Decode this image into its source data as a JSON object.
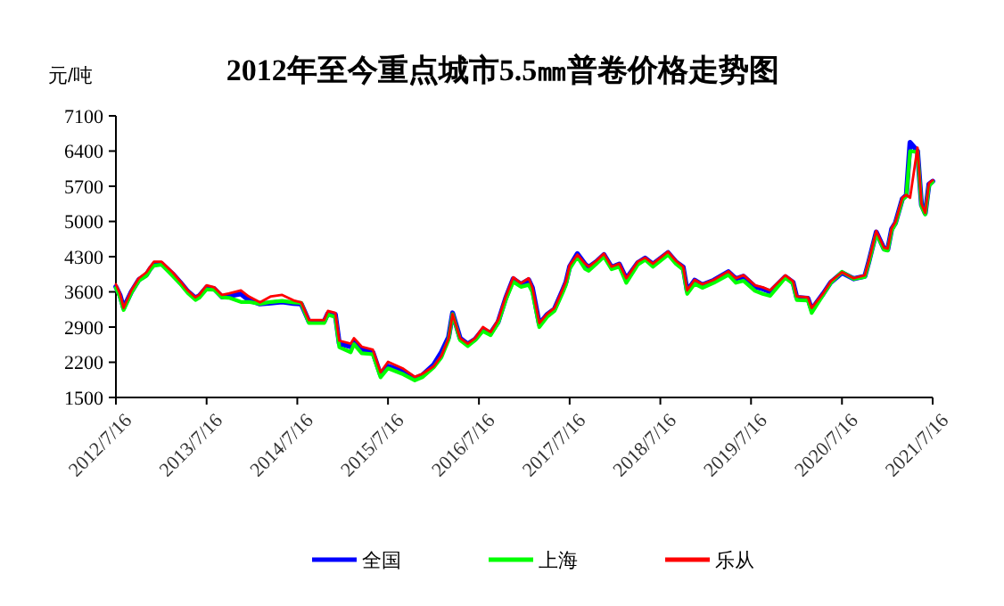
{
  "chart_data": {
    "type": "line",
    "title": "2012年至今重点城市5.5㎜普卷价格走势图",
    "ylabel": "元/吨",
    "x": [
      "2012-07-16",
      "2012-08-01",
      "2012-08-16",
      "2012-09-16",
      "2012-10-16",
      "2012-11-16",
      "2012-12-01",
      "2012-12-16",
      "2013-01-16",
      "2013-03-01",
      "2013-04-01",
      "2013-05-01",
      "2013-06-01",
      "2013-06-16",
      "2013-07-16",
      "2013-08-16",
      "2013-09-16",
      "2013-10-16",
      "2013-12-01",
      "2014-01-01",
      "2014-02-16",
      "2014-04-01",
      "2014-05-16",
      "2014-07-01",
      "2014-08-01",
      "2014-09-01",
      "2014-11-01",
      "2014-11-16",
      "2014-12-16",
      "2015-01-01",
      "2015-02-16",
      "2015-03-01",
      "2015-04-01",
      "2015-05-16",
      "2015-06-16",
      "2015-07-16",
      "2015-09-16",
      "2015-11-01",
      "2015-12-01",
      "2016-01-16",
      "2016-02-16",
      "2016-03-16",
      "2016-04-01",
      "2016-05-01",
      "2016-06-01",
      "2016-07-01",
      "2016-08-01",
      "2016-09-01",
      "2016-10-01",
      "2016-11-01",
      "2016-12-01",
      "2017-01-01",
      "2017-02-01",
      "2017-02-16",
      "2017-03-16",
      "2017-04-16",
      "2017-05-16",
      "2017-06-16",
      "2017-07-01",
      "2017-07-16",
      "2017-08-16",
      "2017-09-16",
      "2017-10-01",
      "2017-11-01",
      "2017-12-01",
      "2018-01-01",
      "2018-02-01",
      "2018-03-01",
      "2018-04-16",
      "2018-05-16",
      "2018-06-16",
      "2018-08-16",
      "2018-09-16",
      "2018-10-16",
      "2018-11-01",
      "2018-12-01",
      "2019-01-01",
      "2019-02-16",
      "2019-04-16",
      "2019-05-16",
      "2019-06-16",
      "2019-08-01",
      "2019-09-01",
      "2019-10-01",
      "2019-12-01",
      "2020-01-01",
      "2020-01-16",
      "2020-03-01",
      "2020-03-16",
      "2020-05-01",
      "2020-06-01",
      "2020-07-16",
      "2020-09-01",
      "2020-10-16",
      "2020-11-01",
      "2020-12-01",
      "2021-01-01",
      "2021-01-16",
      "2021-02-01",
      "2021-02-16",
      "2021-03-16",
      "2021-04-01",
      "2021-04-16",
      "2021-05-16",
      "2021-06-01",
      "2021-06-16",
      "2021-07-01",
      "2021-07-16"
    ],
    "series": [
      {
        "name": "全国",
        "color": "#0000ff",
        "values": [
          3700,
          3540,
          3280,
          3600,
          3840,
          3940,
          4060,
          4150,
          4160,
          3960,
          3790,
          3610,
          3480,
          3520,
          3690,
          3660,
          3500,
          3520,
          3560,
          3440,
          3360,
          3380,
          3400,
          3370,
          3360,
          3010,
          3010,
          3170,
          3150,
          2570,
          2510,
          2620,
          2450,
          2400,
          1950,
          2120,
          2020,
          1880,
          1940,
          2150,
          2400,
          2700,
          3180,
          2680,
          2560,
          2660,
          2850,
          2780,
          3000,
          3480,
          3860,
          3750,
          3840,
          3680,
          2960,
          3150,
          3260,
          3610,
          3790,
          4100,
          4360,
          4150,
          4090,
          4200,
          4340,
          4090,
          4150,
          3860,
          4180,
          4270,
          4150,
          4380,
          4200,
          4090,
          3620,
          3830,
          3740,
          3830,
          4000,
          3860,
          3910,
          3700,
          3660,
          3600,
          3900,
          3790,
          3490,
          3470,
          3250,
          3560,
          3790,
          3980,
          3860,
          3910,
          4200,
          4790,
          4460,
          4440,
          4850,
          4970,
          5450,
          5520,
          6570,
          6400,
          5330,
          5160,
          5740,
          5800
        ]
      },
      {
        "name": "上海",
        "color": "#00ff00",
        "values": [
          3680,
          3500,
          3240,
          3580,
          3820,
          3920,
          4040,
          4120,
          4140,
          3920,
          3760,
          3580,
          3440,
          3480,
          3650,
          3640,
          3490,
          3480,
          3400,
          3400,
          3360,
          3400,
          3420,
          3390,
          3380,
          2980,
          2980,
          3150,
          3100,
          2500,
          2400,
          2560,
          2380,
          2360,
          1900,
          2080,
          1960,
          1840,
          1900,
          2100,
          2300,
          2650,
          3160,
          2640,
          2520,
          2640,
          2820,
          2740,
          2980,
          3440,
          3800,
          3700,
          3740,
          3600,
          2900,
          3100,
          3220,
          3560,
          3740,
          4060,
          4300,
          4060,
          4020,
          4160,
          4300,
          4050,
          4100,
          3780,
          4140,
          4240,
          4100,
          4340,
          4160,
          4040,
          3560,
          3760,
          3680,
          3780,
          3940,
          3780,
          3820,
          3620,
          3560,
          3520,
          3880,
          3760,
          3440,
          3430,
          3180,
          3540,
          3780,
          4000,
          3860,
          3900,
          4180,
          4760,
          4440,
          4420,
          4820,
          4950,
          5430,
          5500,
          6400,
          6380,
          5300,
          5140,
          5700,
          5790
        ]
      },
      {
        "name": "乐从",
        "color": "#ff0000",
        "values": [
          3750,
          3570,
          3280,
          3630,
          3870,
          3990,
          4100,
          4200,
          4200,
          3990,
          3810,
          3630,
          3490,
          3540,
          3730,
          3690,
          3540,
          3570,
          3630,
          3510,
          3390,
          3510,
          3540,
          3430,
          3390,
          3040,
          3040,
          3220,
          3180,
          2630,
          2570,
          2680,
          2510,
          2450,
          2000,
          2210,
          2070,
          1910,
          1970,
          2120,
          2330,
          2680,
          3160,
          2680,
          2570,
          2680,
          2900,
          2800,
          3040,
          3510,
          3890,
          3770,
          3870,
          3690,
          2980,
          3160,
          3280,
          3630,
          3810,
          4130,
          4340,
          4160,
          4100,
          4220,
          4360,
          4100,
          4160,
          3870,
          4200,
          4280,
          4160,
          4400,
          4220,
          4100,
          3630,
          3840,
          3750,
          3840,
          4010,
          3870,
          3930,
          3730,
          3690,
          3630,
          3930,
          3810,
          3510,
          3490,
          3280,
          3570,
          3810,
          3990,
          3870,
          3930,
          4220,
          4810,
          4480,
          4460,
          4870,
          4990,
          5470,
          5530,
          5470,
          6470,
          5350,
          5170,
          5760,
          5820
        ]
      }
    ],
    "xlim": [
      "2012-07-16",
      "2021-07-16"
    ],
    "xticks": [
      {
        "value": "2012-07-16",
        "label": "2012/7/16"
      },
      {
        "value": "2013-07-16",
        "label": "2013/7/16"
      },
      {
        "value": "2014-07-16",
        "label": "2014/7/16"
      },
      {
        "value": "2015-07-16",
        "label": "2015/7/16"
      },
      {
        "value": "2016-07-16",
        "label": "2016/7/16"
      },
      {
        "value": "2017-07-16",
        "label": "2017/7/16"
      },
      {
        "value": "2018-07-16",
        "label": "2018/7/16"
      },
      {
        "value": "2019-07-16",
        "label": "2019/7/16"
      },
      {
        "value": "2020-07-16",
        "label": "2020/7/16"
      },
      {
        "value": "2021-07-16",
        "label": "2021/7/16"
      }
    ],
    "ylim": [
      1500,
      7100
    ],
    "yticks": [
      1500,
      2200,
      2900,
      3600,
      4300,
      5000,
      5700,
      6400,
      7100
    ],
    "legend": "bottom",
    "grid": false,
    "marker": "none",
    "line_style": "solid"
  }
}
